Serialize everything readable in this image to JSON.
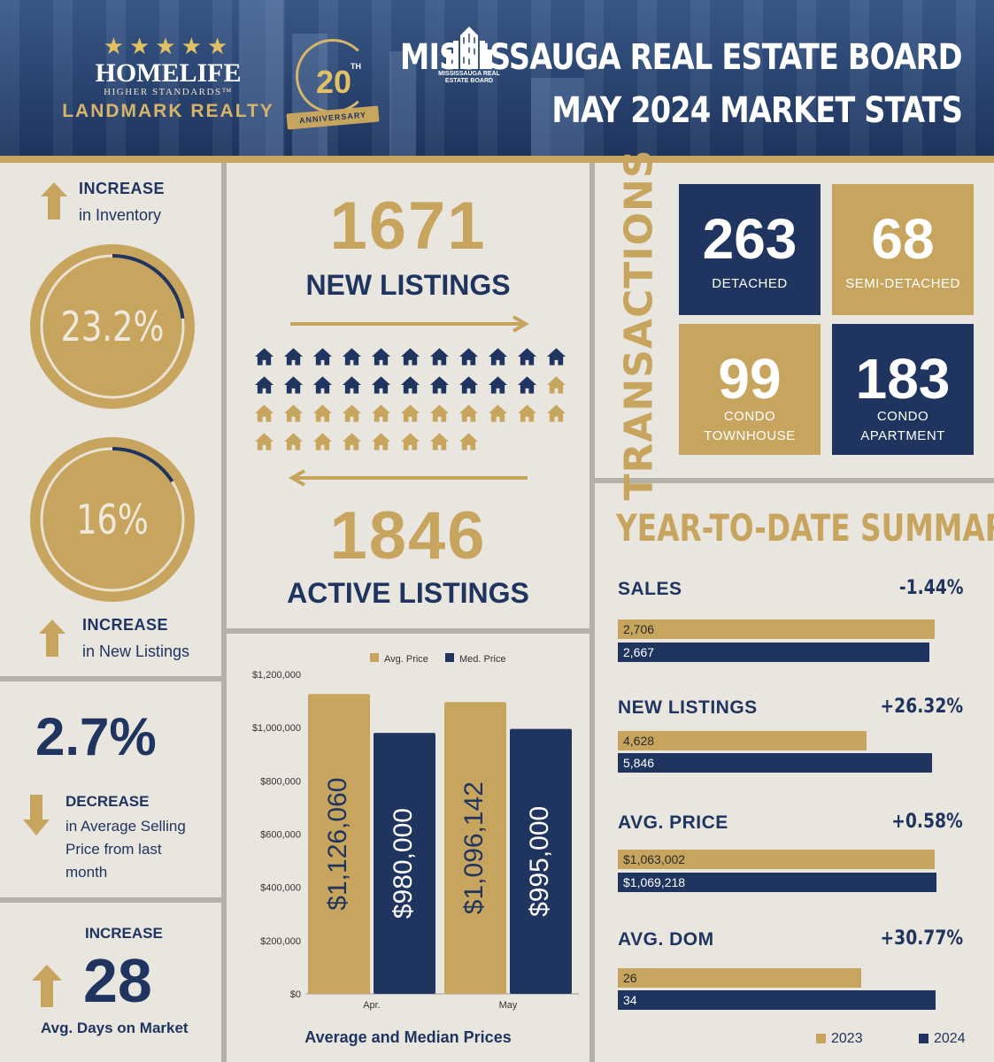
{
  "header": {
    "brand": {
      "stars": "★★★★★",
      "name": "HOMELIFE",
      "tagline": "HIGHER STANDARDS™",
      "realty": "LANDMARK REALTY"
    },
    "anniversary": {
      "number": "20",
      "suffix": "TH",
      "ribbon": "ANNIVERSARY"
    },
    "board_logo_caption": "MISSISSAUGA REAL ESTATE BOARD",
    "title_line1": "MISSISSAUGA REAL ESTATE BOARD",
    "title_line2": "MAY 2024 MARKET STATS"
  },
  "inventory": {
    "heading": "INCREASE",
    "sub": "in Inventory",
    "percent": "23.2%",
    "ring_fraction": 0.232
  },
  "new_listings_increase": {
    "percent": "16%",
    "ring_fraction": 0.16,
    "heading": "INCREASE",
    "sub": "in New Listings"
  },
  "selling_price": {
    "percent": "2.7%",
    "heading": "DECREASE",
    "sub_lines": [
      "in Average Selling",
      "Price from last",
      "month"
    ]
  },
  "dom": {
    "heading": "INCREASE",
    "value": "28",
    "label": "Avg. Days on Market"
  },
  "listings": {
    "new_value": "1671",
    "new_label": "NEW LISTINGS",
    "active_value": "1846",
    "active_label": "ACTIVE LISTINGS",
    "house_rows": [
      [
        "navy",
        "navy",
        "navy",
        "navy",
        "navy",
        "navy",
        "navy",
        "navy",
        "navy",
        "navy",
        "navy"
      ],
      [
        "navy",
        "navy",
        "navy",
        "navy",
        "navy",
        "navy",
        "navy",
        "navy",
        "navy",
        "navy",
        "gold"
      ],
      [
        "gold",
        "gold",
        "gold",
        "gold",
        "gold",
        "gold",
        "gold",
        "gold",
        "gold",
        "gold",
        "gold"
      ],
      [
        "gold",
        "gold",
        "gold",
        "gold",
        "gold",
        "gold",
        "gold",
        "gold"
      ]
    ]
  },
  "transactions": {
    "heading": "TRANSACTIONS",
    "tiles": [
      {
        "value": "263",
        "label_lines": [
          "DETACHED"
        ],
        "style": "navy"
      },
      {
        "value": "68",
        "label_lines": [
          "SEMI-DETACHED"
        ],
        "style": "gold"
      },
      {
        "value": "99",
        "label_lines": [
          "CONDO",
          "TOWNHOUSE"
        ],
        "style": "gold"
      },
      {
        "value": "183",
        "label_lines": [
          "CONDO",
          "APARTMENT"
        ],
        "style": "navy"
      }
    ]
  },
  "chart_data": {
    "type": "bar",
    "title": "Average and Median Prices",
    "categories": [
      "Apr.",
      "May"
    ],
    "series": [
      {
        "name": "Avg. Price",
        "values": [
          1126060,
          1096142
        ],
        "labels": [
          "$1,126,060",
          "$1,096,142"
        ],
        "color": "#c7a55e"
      },
      {
        "name": "Med. Price",
        "values": [
          980000,
          995000
        ],
        "labels": [
          "$980,000",
          "$995,000"
        ],
        "color": "#1f3560"
      }
    ],
    "ylim": [
      0,
      1200000
    ],
    "yticks": [
      "$0",
      "$200,000",
      "$400,000",
      "$600,000",
      "$800,000",
      "$1,000,000",
      "$1,200,000"
    ],
    "legend": "top"
  },
  "ytd": {
    "title": "YEAR-TO-DATE SUMMARY",
    "items": [
      {
        "name": "SALES",
        "change": "-1.44%",
        "v2023": 2706,
        "l2023": "2,706",
        "v2024": 2667,
        "l2024": "2,667",
        "scale": 2800
      },
      {
        "name": "NEW LISTINGS",
        "change": "+26.32%",
        "v2023": 4628,
        "l2023": "4,628",
        "v2024": 5846,
        "l2024": "5,846",
        "scale": 6100
      },
      {
        "name": "AVG. PRICE",
        "change": "+0.58%",
        "v2023": 1063002,
        "l2023": "$1,063,002",
        "v2024": 1069218,
        "l2024": "$1,069,218",
        "scale": 1100000
      },
      {
        "name": "AVG. DOM",
        "change": "+30.77%",
        "v2023": 26,
        "l2023": "26",
        "v2024": 34,
        "l2024": "34",
        "scale": 35
      }
    ],
    "legend": [
      "2023",
      "2024"
    ],
    "colors": {
      "y2023": "#c7a55e",
      "y2024": "#1f3560"
    }
  }
}
